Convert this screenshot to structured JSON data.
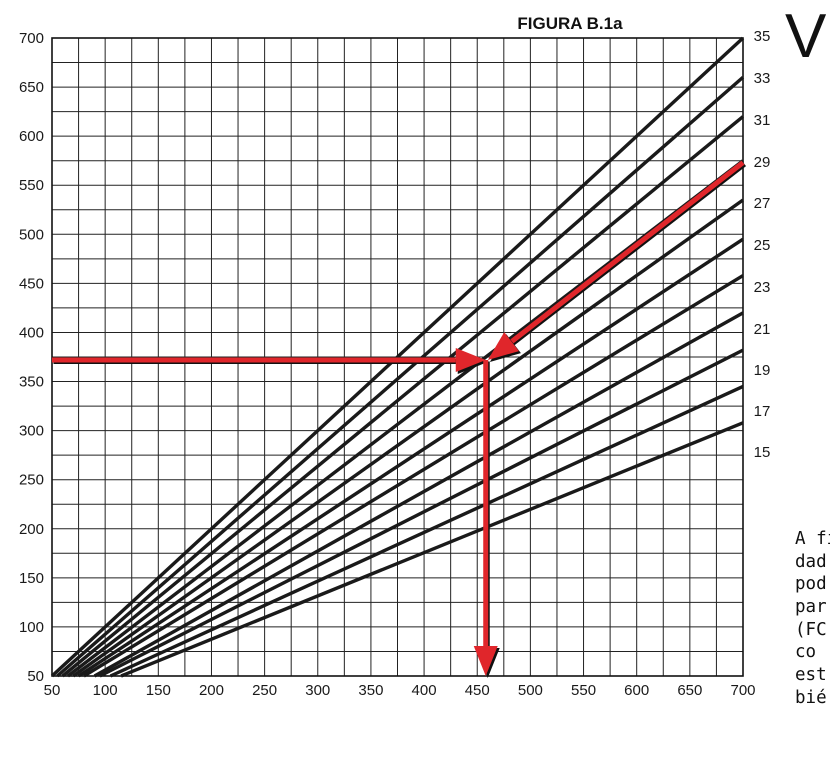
{
  "page": {
    "letter": "V",
    "side_text_lines": [
      "A fi",
      "dad",
      "pod",
      "par",
      "(FC",
      "co",
      "est",
      "bié"
    ]
  },
  "chart_data": {
    "type": "line",
    "title": "FIGURA B.1a",
    "xlabel": "",
    "ylabel": "",
    "xlim": [
      50,
      700
    ],
    "ylim": [
      50,
      700
    ],
    "x_ticks": [
      50,
      100,
      150,
      200,
      250,
      300,
      350,
      400,
      450,
      500,
      550,
      600,
      650,
      700
    ],
    "y_ticks": [
      50,
      100,
      150,
      200,
      250,
      300,
      350,
      400,
      450,
      500,
      550,
      600,
      650,
      700
    ],
    "minor_grid_step": 25,
    "grid": true,
    "series": [
      {
        "name": "35",
        "x": [
          50,
          700
        ],
        "y": [
          50,
          700
        ]
      },
      {
        "name": "33",
        "x": [
          55,
          700
        ],
        "y": [
          50,
          660
        ]
      },
      {
        "name": "31",
        "x": [
          60,
          700
        ],
        "y": [
          50,
          620
        ]
      },
      {
        "name": "29",
        "x": [
          65,
          700
        ],
        "y": [
          50,
          575
        ]
      },
      {
        "name": "27",
        "x": [
          70,
          700
        ],
        "y": [
          50,
          535
        ]
      },
      {
        "name": "25",
        "x": [
          75,
          700
        ],
        "y": [
          50,
          495
        ]
      },
      {
        "name": "23",
        "x": [
          80,
          700
        ],
        "y": [
          50,
          458
        ]
      },
      {
        "name": "21",
        "x": [
          90,
          700
        ],
        "y": [
          50,
          420
        ]
      },
      {
        "name": "19",
        "x": [
          95,
          700
        ],
        "y": [
          50,
          382
        ]
      },
      {
        "name": "17",
        "x": [
          105,
          700
        ],
        "y": [
          50,
          345
        ]
      },
      {
        "name": "15",
        "x": [
          115,
          700
        ],
        "y": [
          50,
          308
        ]
      }
    ],
    "annotations": [
      {
        "kind": "arrow",
        "color": "#e0262b",
        "from": [
          700,
          573
        ],
        "to": [
          460,
          372
        ]
      },
      {
        "kind": "arrow",
        "color": "#e0262b",
        "from": [
          50,
          372
        ],
        "to": [
          458,
          372
        ]
      },
      {
        "kind": "arrow",
        "color": "#e0262b",
        "from": [
          458,
          372
        ],
        "to": [
          458,
          50
        ]
      }
    ],
    "colors": {
      "lines": "#1a1a1a",
      "grid": "#222222",
      "arrows": "#e0262b"
    }
  }
}
